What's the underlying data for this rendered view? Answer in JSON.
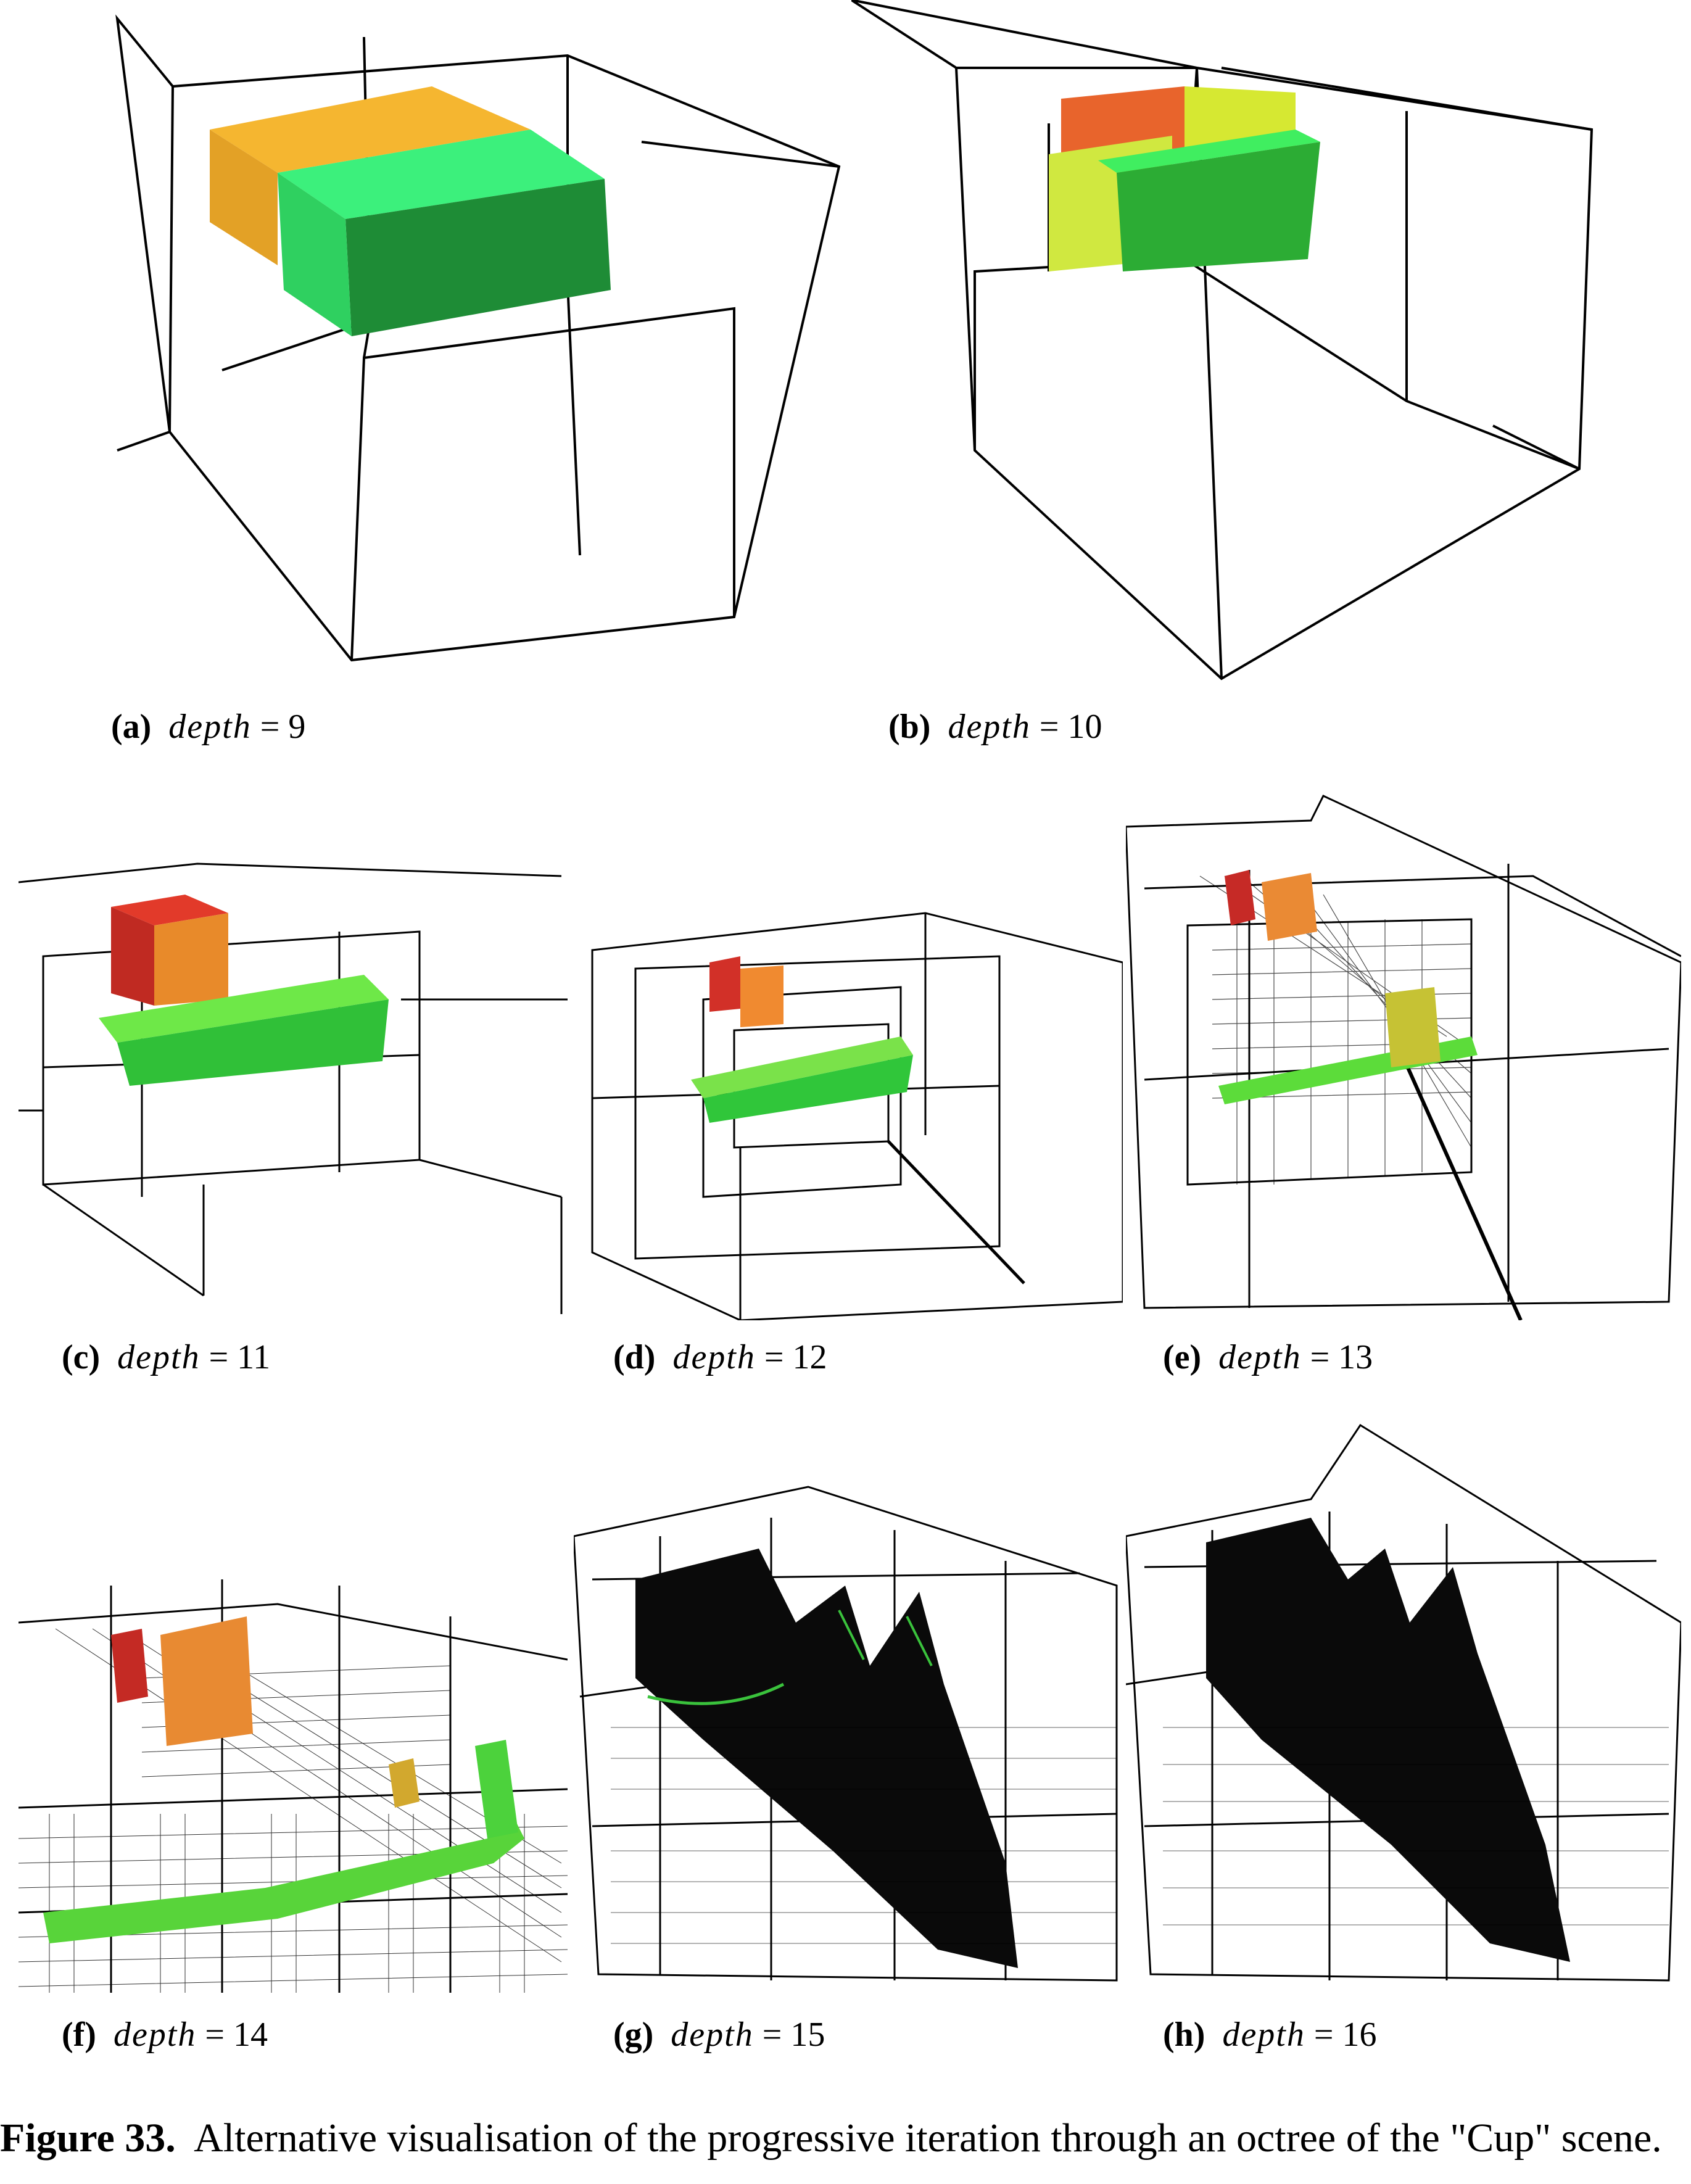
{
  "panels": [
    {
      "id": "a",
      "label": "(a)",
      "var": "depth",
      "eq": "=",
      "value": "9"
    },
    {
      "id": "b",
      "label": "(b)",
      "var": "depth",
      "eq": "=",
      "value": "10"
    },
    {
      "id": "c",
      "label": "(c)",
      "var": "depth",
      "eq": "=",
      "value": "11"
    },
    {
      "id": "d",
      "label": "(d)",
      "var": "depth",
      "eq": "=",
      "value": "12"
    },
    {
      "id": "e",
      "label": "(e)",
      "var": "depth",
      "eq": "=",
      "value": "13"
    },
    {
      "id": "f",
      "label": "(f)",
      "var": "depth",
      "eq": "=",
      "value": "14"
    },
    {
      "id": "g",
      "label": "(g)",
      "var": "depth",
      "eq": "=",
      "value": "15"
    },
    {
      "id": "h",
      "label": "(h)",
      "var": "depth",
      "eq": "=",
      "value": "16"
    }
  ],
  "figure": {
    "number": "Figure 33.",
    "text": "Alternative visualisation of the progressive iteration through an octree of the \"Cup\" scene."
  },
  "colors": {
    "wire": "#000000",
    "red": "#d8352a",
    "orange": "#f07a22",
    "amber": "#f6b52a",
    "yellow": "#d9ea3a",
    "green": "#3ee86a",
    "dark_green": "#1a7a2a"
  }
}
